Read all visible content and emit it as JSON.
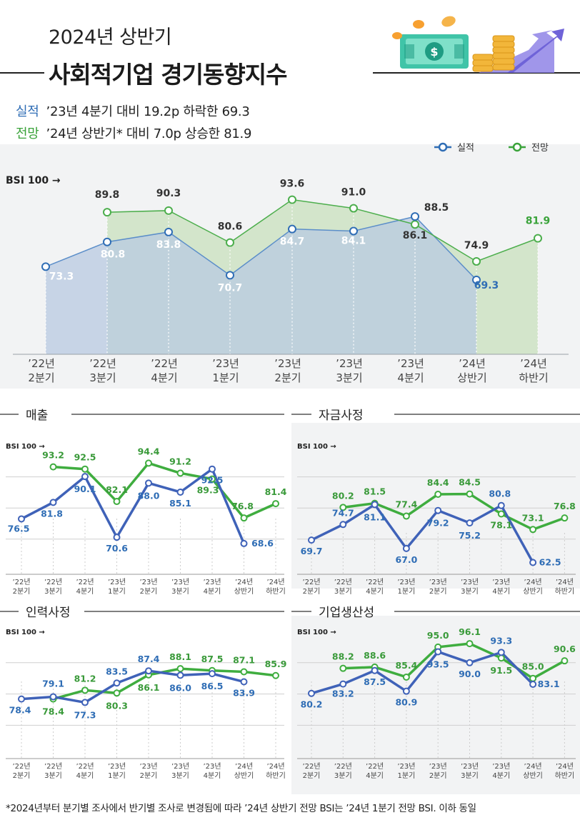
{
  "header": {
    "subtitle": "2024년 상반기",
    "title": "사회적기업 경기동향지수"
  },
  "summary": [
    {
      "tag": "실적",
      "text": "’23년 4분기 대비 19.2p 하락한 69.3"
    },
    {
      "tag": "전망",
      "text": "’24년 상반기* 대비 7.0p 상승한 81.9"
    }
  ],
  "colors": {
    "actual": "#2f6db5",
    "forecast": "#3aa33a",
    "actual_small": "#3f62b8",
    "forecast_small": "#3fad3f"
  },
  "bsi_label": "BSI 100 →",
  "footnote": "*2024년부터 분기별 조사에서 반기별 조사로 변경됨에 따라 ’24년 상반기 전망 BSI는 ’24년 1분기 전망 BSI. 이하 동일",
  "chart_data": [
    {
      "type": "area",
      "title": "",
      "legend": [
        "실적",
        "전망"
      ],
      "categories": [
        "’22년\n2분기",
        "’22년\n3분기",
        "’22년\n4분기",
        "’23년\n1분기",
        "’23년\n2분기",
        "’23년\n3분기",
        "’23년\n4분기",
        "’24년\n상반기",
        "’24년\n하반기"
      ],
      "series": [
        {
          "name": "실적",
          "values": [
            73.3,
            80.8,
            83.8,
            70.7,
            84.7,
            84.1,
            88.5,
            69.3,
            null
          ]
        },
        {
          "name": "전망",
          "values": [
            null,
            89.8,
            90.3,
            80.6,
            93.6,
            91.0,
            86.1,
            74.9,
            81.9
          ]
        }
      ],
      "reference_line": "BSI 100 →"
    },
    {
      "type": "line",
      "title": "매출",
      "categories": [
        "’22년\n2분기",
        "’22년\n3분기",
        "’22년\n4분기",
        "’23년\n1분기",
        "’23년\n2분기",
        "’23년\n3분기",
        "’23년\n4분기",
        "’24년\n상반기",
        "’24년\n하반기"
      ],
      "series": [
        {
          "name": "실적",
          "values": [
            76.5,
            81.8,
            90.1,
            70.6,
            88.0,
            85.1,
            92.5,
            68.6,
            null
          ]
        },
        {
          "name": "전망",
          "values": [
            null,
            93.2,
            92.5,
            82.1,
            94.4,
            91.2,
            89.3,
            76.8,
            81.4
          ]
        }
      ]
    },
    {
      "type": "line",
      "title": "자금사정",
      "categories": [
        "’22년\n2분기",
        "’22년\n3분기",
        "’22년\n4분기",
        "’23년\n1분기",
        "’23년\n2분기",
        "’23년\n3분기",
        "’23년\n4분기",
        "’24년\n상반기",
        "’24년\n하반기"
      ],
      "series": [
        {
          "name": "실적",
          "values": [
            69.7,
            74.7,
            81.1,
            67.0,
            79.2,
            75.2,
            80.8,
            62.5,
            null
          ]
        },
        {
          "name": "전망",
          "values": [
            null,
            80.2,
            81.5,
            77.4,
            84.4,
            84.5,
            78.1,
            73.1,
            76.8
          ]
        }
      ]
    },
    {
      "type": "line",
      "title": "인력사정",
      "categories": [
        "’22년\n2분기",
        "’22년\n3분기",
        "’22년\n4분기",
        "’23년\n1분기",
        "’23년\n2분기",
        "’23년\n3분기",
        "’23년\n4분기",
        "’24년\n상반기",
        "’24년\n하반기"
      ],
      "series": [
        {
          "name": "실적",
          "values": [
            78.4,
            79.1,
            77.3,
            83.5,
            87.4,
            86.0,
            86.5,
            83.9,
            null
          ]
        },
        {
          "name": "전망",
          "values": [
            null,
            78.4,
            81.2,
            80.3,
            86.1,
            88.1,
            87.5,
            87.1,
            85.9
          ]
        }
      ]
    },
    {
      "type": "line",
      "title": "기업생산성",
      "categories": [
        "’22년\n2분기",
        "’22년\n3분기",
        "’22년\n4분기",
        "’23년\n1분기",
        "’23년\n2분기",
        "’23년\n3분기",
        "’23년\n4분기",
        "’24년\n상반기",
        "’24년\n하반기"
      ],
      "series": [
        {
          "name": "실적",
          "values": [
            80.2,
            83.2,
            87.5,
            80.9,
            93.5,
            90.0,
            93.3,
            83.1,
            null
          ]
        },
        {
          "name": "전망",
          "values": [
            null,
            88.2,
            88.6,
            85.4,
            95.0,
            96.1,
            91.5,
            85.0,
            90.6
          ]
        }
      ]
    }
  ]
}
